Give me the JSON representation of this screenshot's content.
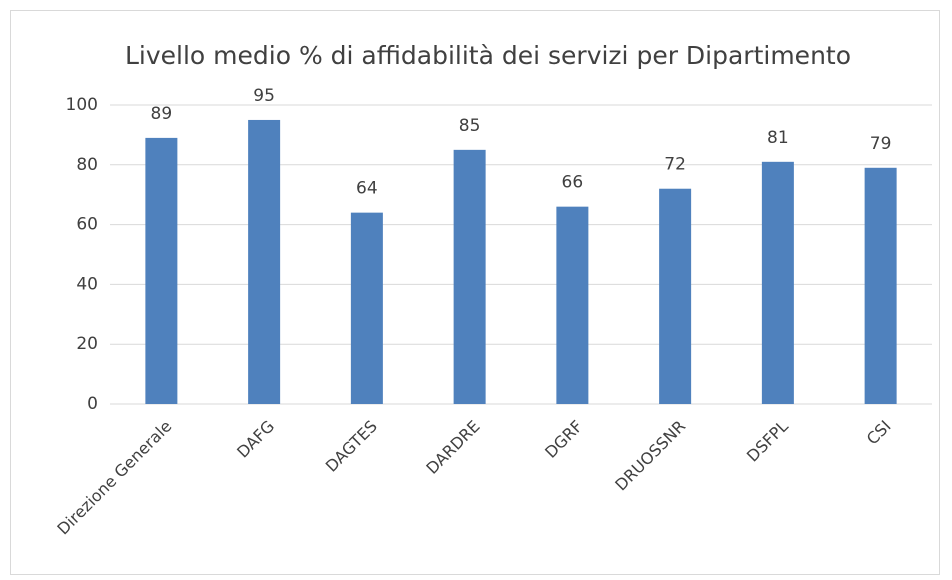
{
  "chart_data": {
    "type": "bar",
    "title": "Livello medio % di affidabilità dei servizi per Dipartimento",
    "categories": [
      "Direzione Generale",
      "DAFG",
      "DAGTES",
      "DARDRE",
      "DGRF",
      "DRUOSSNR",
      "DSFPL",
      "CSI"
    ],
    "values": [
      89,
      95,
      64,
      85,
      66,
      72,
      81,
      79
    ],
    "color": "#4f81bd",
    "ylim": [
      0,
      100
    ],
    "yticks": [
      0,
      20,
      40,
      60,
      80,
      100
    ],
    "grid": true
  }
}
